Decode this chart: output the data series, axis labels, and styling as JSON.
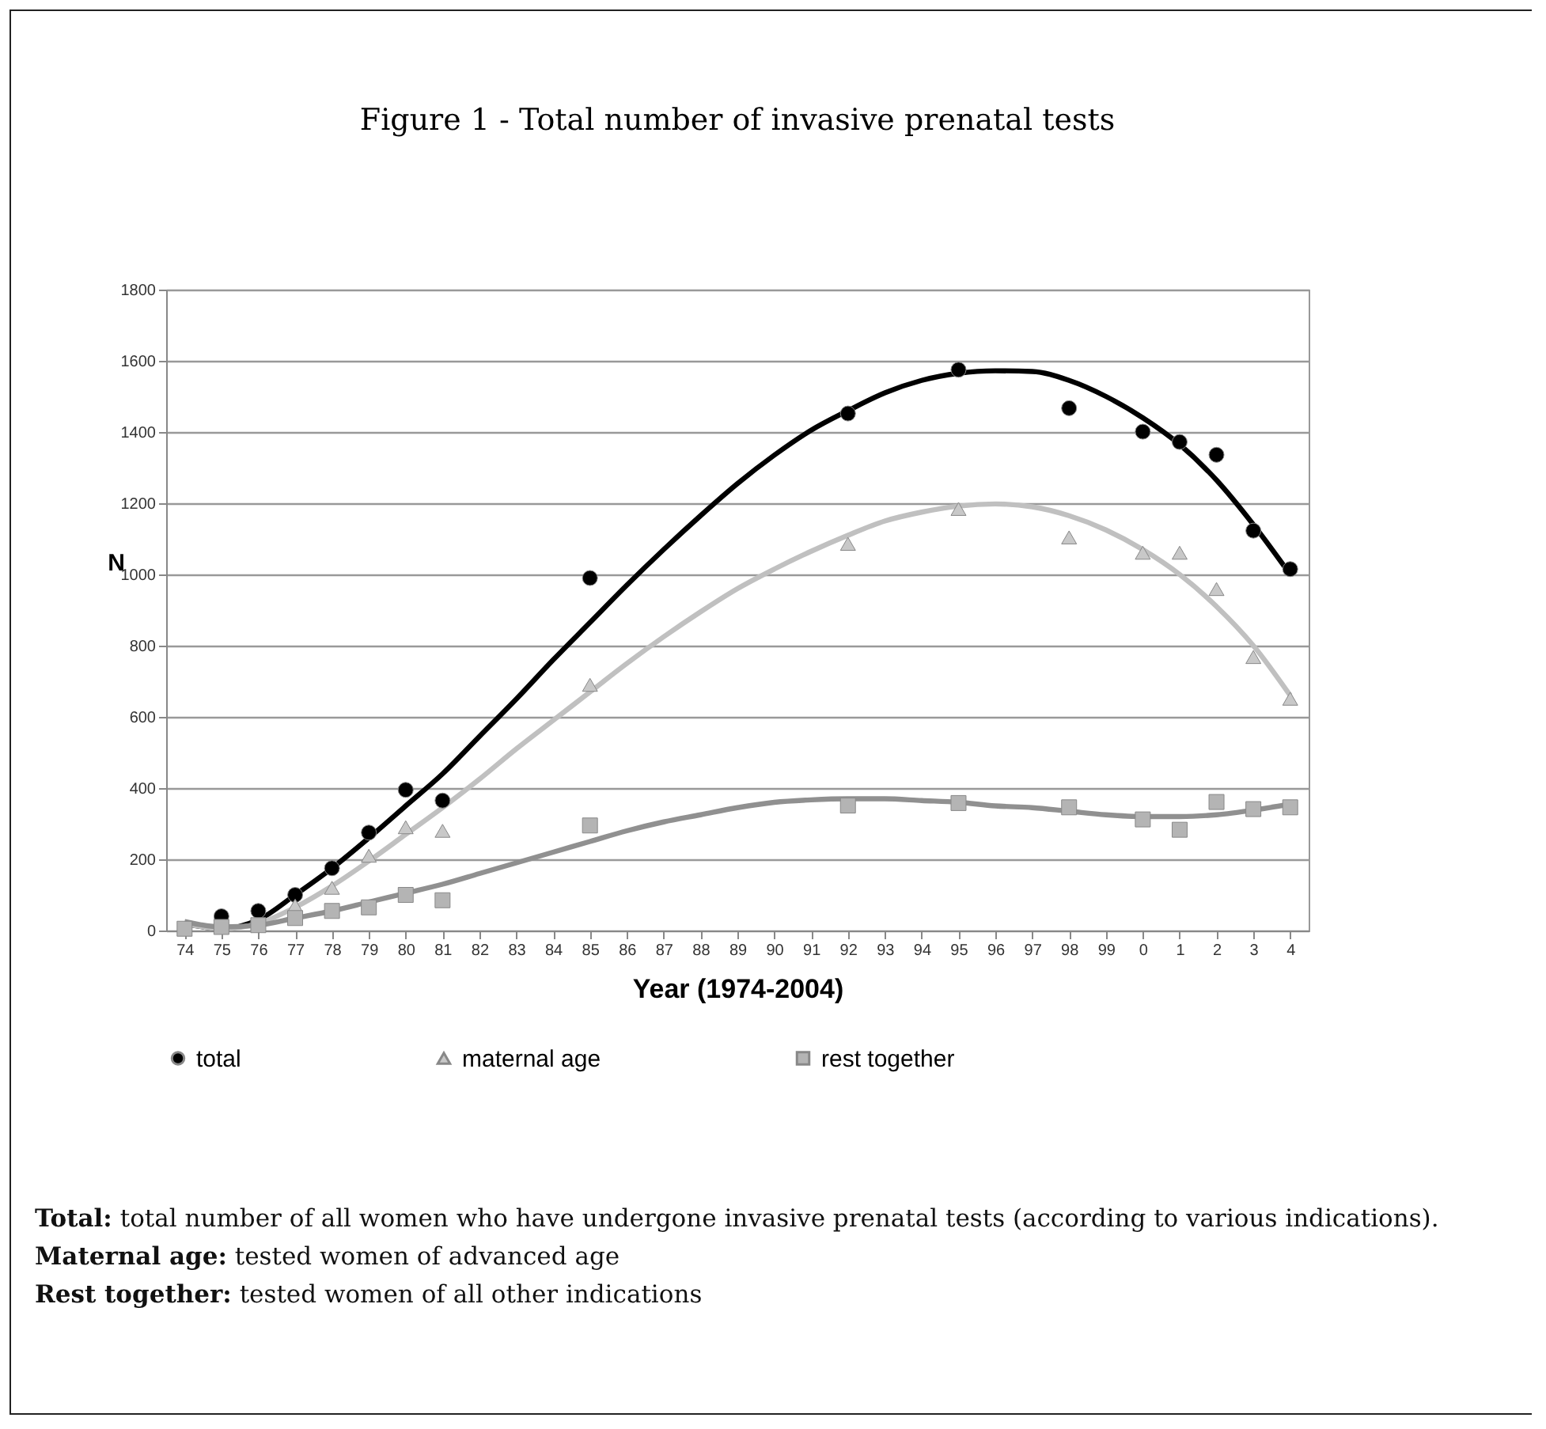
{
  "chart_data": {
    "type": "scatter",
    "title": "Figure 1 - Total number of invasive prenatal tests",
    "xlabel": "Year (1974-2004)",
    "ylabel": "N",
    "categories": [
      "74",
      "75",
      "76",
      "77",
      "78",
      "79",
      "80",
      "81",
      "82",
      "83",
      "84",
      "85",
      "86",
      "87",
      "88",
      "89",
      "90",
      "91",
      "92",
      "93",
      "94",
      "95",
      "96",
      "97",
      "98",
      "99",
      "0",
      "1",
      "2",
      "3",
      "4"
    ],
    "series": [
      {
        "name": "total",
        "color": "#000000",
        "marker": "circle",
        "values": [
          null,
          40,
          55,
          100,
          175,
          275,
          395,
          365,
          null,
          null,
          null,
          990,
          null,
          null,
          null,
          null,
          null,
          null,
          1452,
          null,
          null,
          1575,
          null,
          null,
          1467,
          null,
          1401,
          1372,
          1336,
          1123,
          1015
        ]
      },
      {
        "name": "maternal age",
        "color": "#c8c8c8",
        "marker": "triangle",
        "values": [
          null,
          null,
          null,
          70,
          120,
          210,
          290,
          280,
          null,
          null,
          null,
          690,
          null,
          null,
          null,
          null,
          null,
          null,
          1086,
          null,
          null,
          1184,
          null,
          null,
          1104,
          null,
          1061,
          1061,
          959,
          768,
          651
        ]
      },
      {
        "name": "rest together",
        "color": "#b4b4b4",
        "marker": "square",
        "values": [
          5,
          10,
          15,
          35,
          55,
          65,
          100,
          85,
          null,
          null,
          null,
          295,
          null,
          null,
          null,
          null,
          null,
          null,
          351,
          null,
          null,
          358,
          null,
          null,
          346,
          null,
          312,
          283,
          361,
          341,
          346
        ]
      },
      {
        "type": "line",
        "color": "#000000",
        "marker": "none",
        "values": [
          20,
          5,
          30,
          100,
          175,
          260,
          350,
          440,
          545,
          650,
          760,
          865,
          970,
          1070,
          1165,
          1255,
          1335,
          1405,
          1460,
          1510,
          1545,
          1565,
          1572,
          1570,
          1545,
          1500,
          1440,
          1365,
          1265,
          1140,
          1000
        ]
      },
      {
        "type": "line",
        "color": "#c0c0c0",
        "marker": "none",
        "values": [
          20,
          5,
          20,
          65,
          125,
          195,
          270,
          345,
          425,
          510,
          590,
          670,
          750,
          825,
          895,
          960,
          1015,
          1065,
          1110,
          1150,
          1175,
          1192,
          1198,
          1190,
          1165,
          1125,
          1070,
          1000,
          910,
          800,
          660
        ]
      },
      {
        "type": "line",
        "color": "#909090",
        "marker": "none",
        "values": [
          25,
          10,
          15,
          35,
          55,
          80,
          105,
          130,
          160,
          190,
          220,
          250,
          280,
          305,
          325,
          345,
          360,
          367,
          370,
          370,
          365,
          360,
          350,
          345,
          335,
          325,
          320,
          320,
          325,
          338,
          355
        ]
      }
    ],
    "ylim": [
      0,
      1800
    ],
    "yticks": [
      0,
      200,
      400,
      600,
      800,
      1000,
      1200,
      1400,
      1600,
      1800
    ],
    "grid": "y",
    "legend": "bottom",
    "annotations": [
      "Total: total number of all women who have undergone invasive prenatal tests (according to various indications).",
      "Maternal age: tested women of advanced age",
      "Rest together: tested women of all other indications"
    ]
  }
}
